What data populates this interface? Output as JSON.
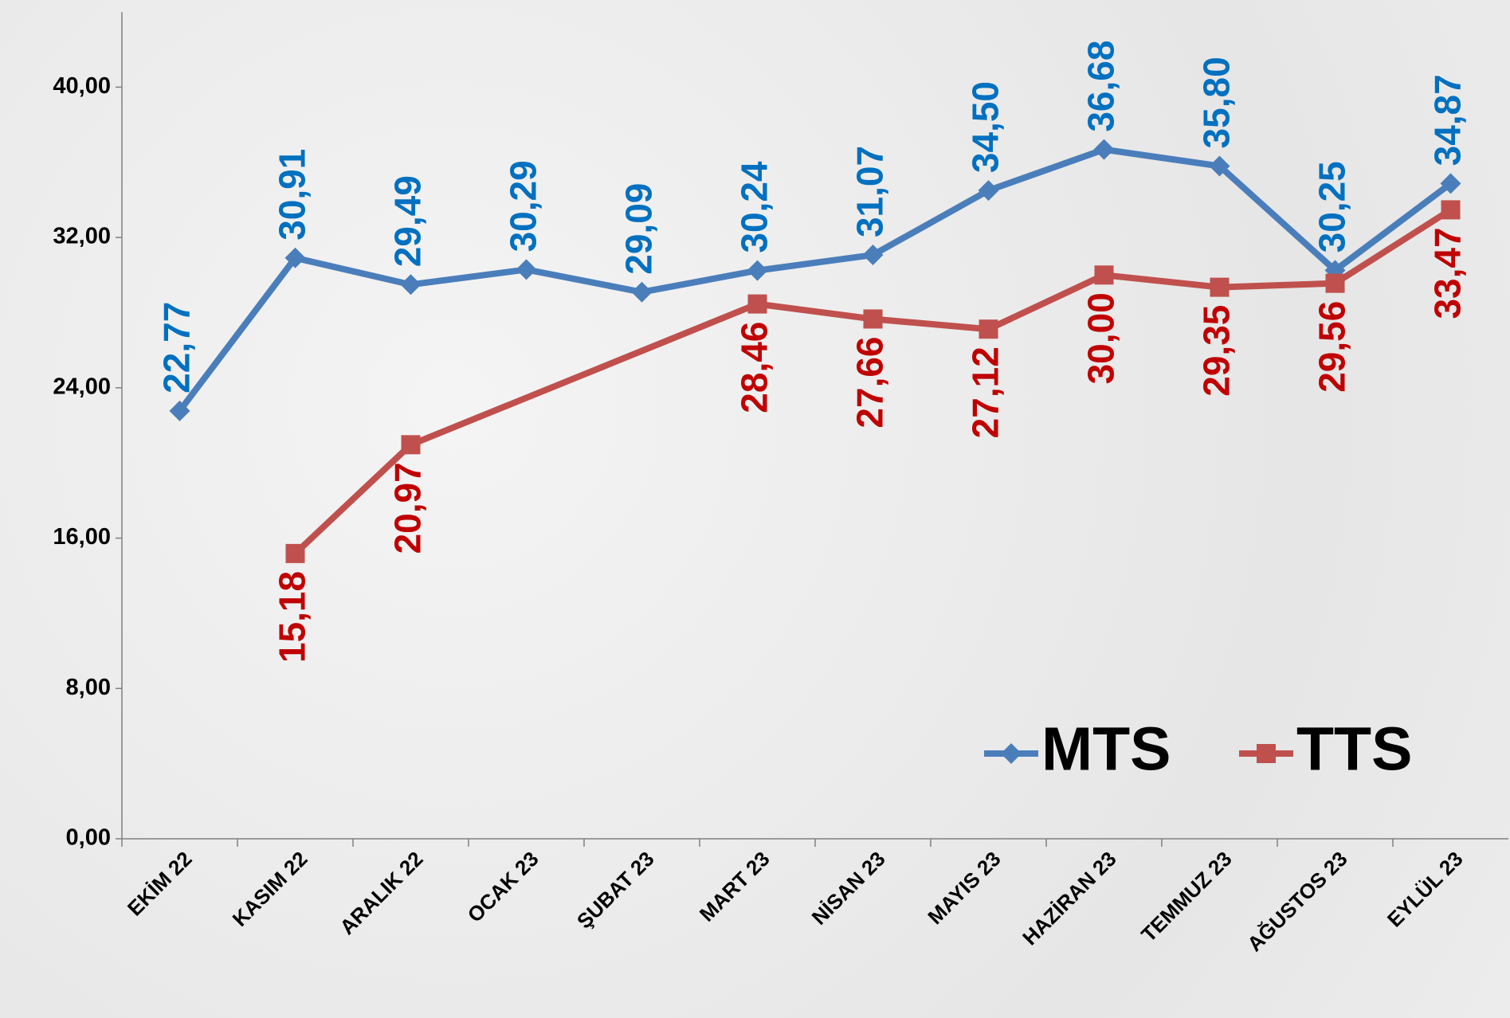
{
  "chart_data": {
    "type": "line",
    "categories": [
      "EKİM 22",
      "KASIM 22",
      "ARALIK 22",
      "OCAK 23",
      "ŞUBAT 23",
      "MART 23",
      "NİSAN 23",
      "MAYIS 23",
      "HAZİRAN 23",
      "TEMMUZ 23",
      "AĞUSTOS 23",
      "EYLÜL 23"
    ],
    "series": [
      {
        "name": "MTS",
        "color": "#4a7ebb",
        "label_color": "#0070c0",
        "marker": "diamond",
        "values": [
          22.77,
          30.91,
          29.49,
          30.29,
          29.09,
          30.24,
          31.07,
          34.5,
          36.68,
          35.8,
          30.25,
          34.87
        ],
        "value_labels": [
          "22,77",
          "30,91",
          "29,49",
          "30,29",
          "29,09",
          "30,24",
          "31,07",
          "34,50",
          "36,68",
          "35,80",
          "30,25",
          "34,87"
        ],
        "label_position": "above"
      },
      {
        "name": "TTS",
        "color": "#c0504d",
        "label_color": "#c00000",
        "marker": "square",
        "values": [
          null,
          15.18,
          20.97,
          null,
          null,
          28.46,
          27.66,
          27.12,
          30.0,
          29.35,
          29.56,
          33.47
        ],
        "value_labels": [
          null,
          "15,18",
          "20,97",
          null,
          null,
          "28,46",
          "27,66",
          "27,12",
          "30,00",
          "29,35",
          "29,56",
          "33,47"
        ],
        "label_position": "below"
      }
    ],
    "span_gaps": true,
    "ylim": [
      0,
      44
    ],
    "yticks": [
      {
        "value": 0,
        "label": "0,00"
      },
      {
        "value": 8,
        "label": "8,00"
      },
      {
        "value": 16,
        "label": "16,00"
      },
      {
        "value": 24,
        "label": "24,00"
      },
      {
        "value": 32,
        "label": "32,00"
      },
      {
        "value": 40,
        "label": "40,00"
      }
    ],
    "grid": false,
    "legend": "lower right"
  }
}
